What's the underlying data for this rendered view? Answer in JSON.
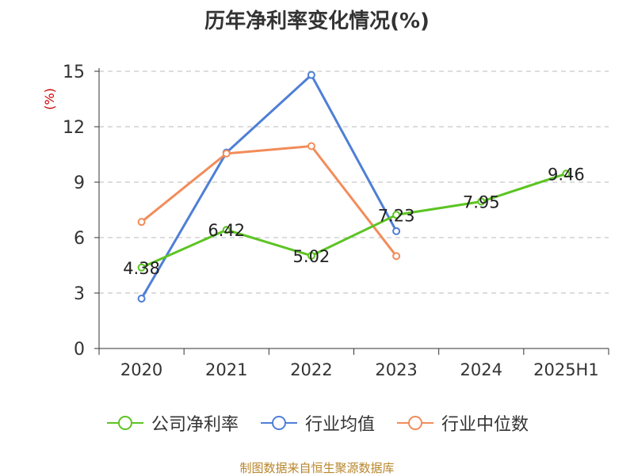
{
  "title": "历年净利率变化情况(%)",
  "source_note": "制图数据来自恒生聚源数据库",
  "colors": {
    "company": "#5cc423",
    "industry_avg": "#4e7fd6",
    "industry_median": "#f28c5a",
    "ylabel": "#cc0000",
    "grid": "#bbbbbb",
    "axis": "#333333"
  },
  "chart_data": {
    "type": "line",
    "title": "历年净利率变化情况(%)",
    "ylabel": "(%)",
    "xlabel": "",
    "categories": [
      "2020",
      "2021",
      "2022",
      "2023",
      "2024",
      "2025H1"
    ],
    "ylim": [
      0,
      15
    ],
    "yticks": [
      0,
      3,
      6,
      9,
      12,
      15
    ],
    "grid": true,
    "legend_position": "bottom",
    "series": [
      {
        "name": "公司净利率",
        "color": "#5cc423",
        "values": [
          4.38,
          6.42,
          5.02,
          7.23,
          7.95,
          9.46
        ],
        "labels": [
          "4.38",
          "6.42",
          "5.02",
          "7.23",
          "7.95",
          "9.46"
        ]
      },
      {
        "name": "行业均值",
        "color": "#4e7fd6",
        "values": [
          2.7,
          10.6,
          14.8,
          6.35,
          null,
          null
        ]
      },
      {
        "name": "行业中位数",
        "color": "#f28c5a",
        "values": [
          6.85,
          10.55,
          10.95,
          5.0,
          null,
          null
        ]
      }
    ]
  }
}
